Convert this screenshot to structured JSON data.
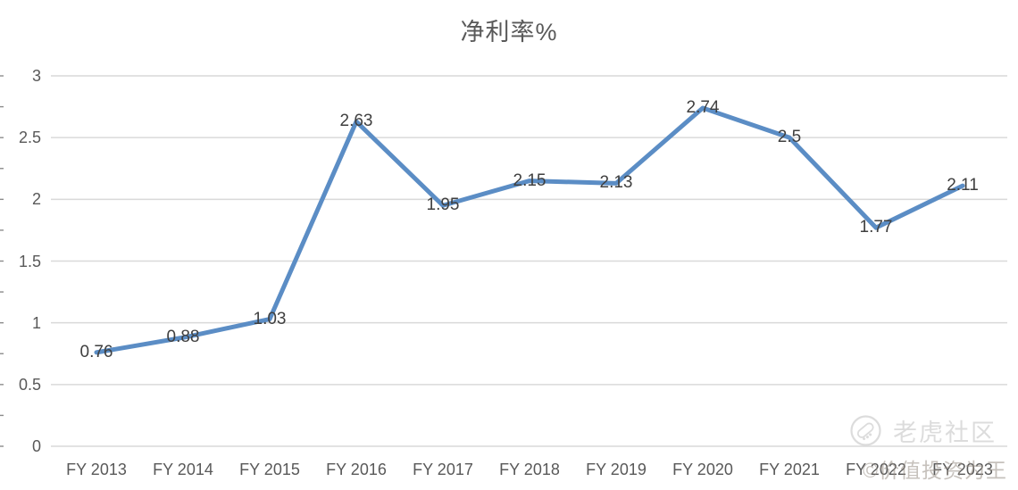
{
  "chart_data": {
    "type": "line",
    "title": "净利率%",
    "categories": [
      "FY 2013",
      "FY 2014",
      "FY 2015",
      "FY 2016",
      "FY 2017",
      "FY 2018",
      "FY 2019",
      "FY 2020",
      "FY 2021",
      "FY 2022",
      "FY 2023"
    ],
    "values": [
      0.76,
      0.88,
      1.03,
      2.63,
      1.95,
      2.15,
      2.13,
      2.74,
      2.5,
      1.77,
      2.11
    ],
    "value_labels": [
      "0.76",
      "0.88",
      "1.03",
      "2.63",
      "1.95",
      "2.15",
      "2.13",
      "2.74",
      "2.5",
      "1.77",
      "2.11"
    ],
    "xlabel": "",
    "ylabel": "",
    "ylim": [
      0,
      3
    ],
    "ytick_step": 0.5,
    "ytick_labels": [
      "0",
      "0.5",
      "1",
      "1.5",
      "2",
      "2.5",
      "3"
    ],
    "grid": "horizontal",
    "legend_position": "none",
    "line_color": "#5B8DC5",
    "grid_color": "#D9D9D9",
    "minor_tick_color": "#8C8C8C",
    "axis_label_color": "#595959",
    "data_label_color": "#3F3F3F",
    "title_color": "#595959"
  },
  "watermark": {
    "community_label": "老虎社区",
    "logo_icon": "tiger-circle-icon",
    "secondary_label": "©价值投资为王",
    "color": "#DCDCDC"
  }
}
